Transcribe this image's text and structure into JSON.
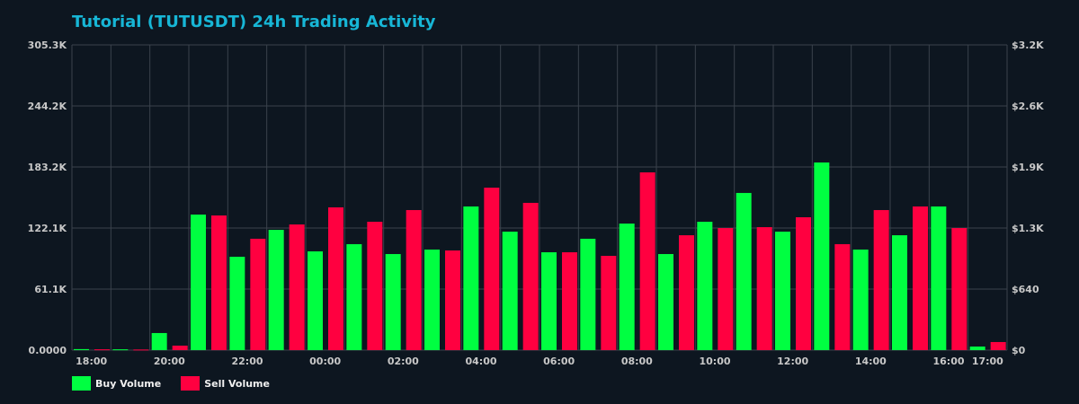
{
  "chart_data": {
    "type": "bar",
    "title": "Tutorial (TUTUSDT) 24h Trading Activity",
    "categories": [
      "18:00",
      "19:00",
      "20:00",
      "21:00",
      "22:00",
      "23:00",
      "00:00",
      "01:00",
      "02:00",
      "03:00",
      "04:00",
      "05:00",
      "06:00",
      "07:00",
      "08:00",
      "09:00",
      "10:00",
      "11:00",
      "12:00",
      "13:00",
      "14:00",
      "15:00",
      "16:00",
      "17:00"
    ],
    "x_tick_labels": [
      "18:00",
      "20:00",
      "22:00",
      "00:00",
      "02:00",
      "04:00",
      "06:00",
      "08:00",
      "10:00",
      "12:00",
      "14:00",
      "16:00",
      "17:00"
    ],
    "x_tick_indices": [
      0,
      2,
      4,
      6,
      8,
      10,
      12,
      14,
      16,
      18,
      20,
      22,
      23
    ],
    "series": [
      {
        "name": "Buy Volume",
        "color": "#00ff41",
        "values": [
          1.0,
          0.8,
          17.1,
          135.6,
          93.4,
          120.3,
          98.8,
          106.0,
          96.1,
          100.6,
          143.7,
          118.5,
          97.9,
          111.4,
          126.6,
          96.1,
          128.4,
          157.2,
          118.5,
          187.7,
          100.6,
          114.9,
          143.7,
          3.6
        ]
      },
      {
        "name": "Sell Volume",
        "color": "#ff0040",
        "values": [
          0.8,
          0.6,
          4.5,
          134.7,
          111.4,
          125.7,
          142.8,
          128.4,
          140.1,
          99.7,
          162.5,
          147.3,
          97.9,
          94.3,
          177.8,
          114.9,
          122.1,
          123.0,
          132.9,
          106.0,
          140.1,
          143.7,
          122.1,
          8.1
        ]
      }
    ],
    "value_unit": "K",
    "ylim": [
      0,
      305.3
    ],
    "y_tick_labels": [
      "0.0000",
      "61.1K",
      "122.1K",
      "183.2K",
      "244.2K",
      "305.3K"
    ],
    "y2_tick_labels": [
      "$0",
      "$640",
      "$1.3K",
      "$1.9K",
      "$2.6K",
      "$3.2K"
    ],
    "grid": true,
    "legend_position": "bottom-left"
  },
  "colors": {
    "background": "#0d1620",
    "title": "#17b6d6",
    "grid": "#3a424c"
  }
}
